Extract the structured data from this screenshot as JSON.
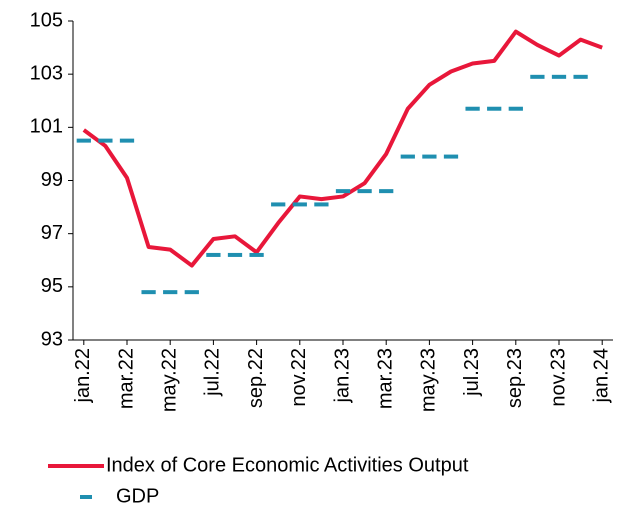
{
  "chart_data": {
    "type": "line",
    "categories": [
      "jan.22",
      null,
      "mar.22",
      null,
      "may.22",
      null,
      "jul.22",
      null,
      "sep.22",
      null,
      "nov.22",
      null,
      "jan.23",
      null,
      "mar.23",
      null,
      "may.23",
      null,
      "jul.23",
      null,
      "sep.23",
      null,
      "nov.23",
      null,
      "jan.24"
    ],
    "series": [
      {
        "name": "Index of Core Economic Activities Output",
        "color": "#e8173a",
        "style": "solid",
        "values": [
          100.9,
          100.3,
          99.1,
          96.5,
          96.4,
          95.8,
          96.8,
          96.9,
          96.3,
          97.4,
          98.4,
          98.3,
          98.4,
          98.9,
          100.0,
          101.7,
          102.6,
          103.1,
          103.4,
          103.5,
          104.6,
          104.1,
          103.7,
          104.3,
          104.0
        ]
      },
      {
        "name": "GDP",
        "color": "#1f8fb0",
        "style": "dash",
        "values": [
          100.5,
          100.5,
          100.5,
          94.8,
          94.8,
          94.8,
          96.2,
          96.2,
          96.2,
          98.1,
          98.1,
          98.1,
          98.6,
          98.6,
          98.6,
          99.9,
          99.9,
          99.9,
          101.7,
          101.7,
          101.7,
          102.9,
          102.9,
          102.9,
          null
        ]
      }
    ],
    "ylim": [
      93,
      105
    ],
    "yticks": [
      93,
      95,
      97,
      99,
      101,
      103,
      105
    ],
    "grid": false,
    "legend": "bottom"
  }
}
